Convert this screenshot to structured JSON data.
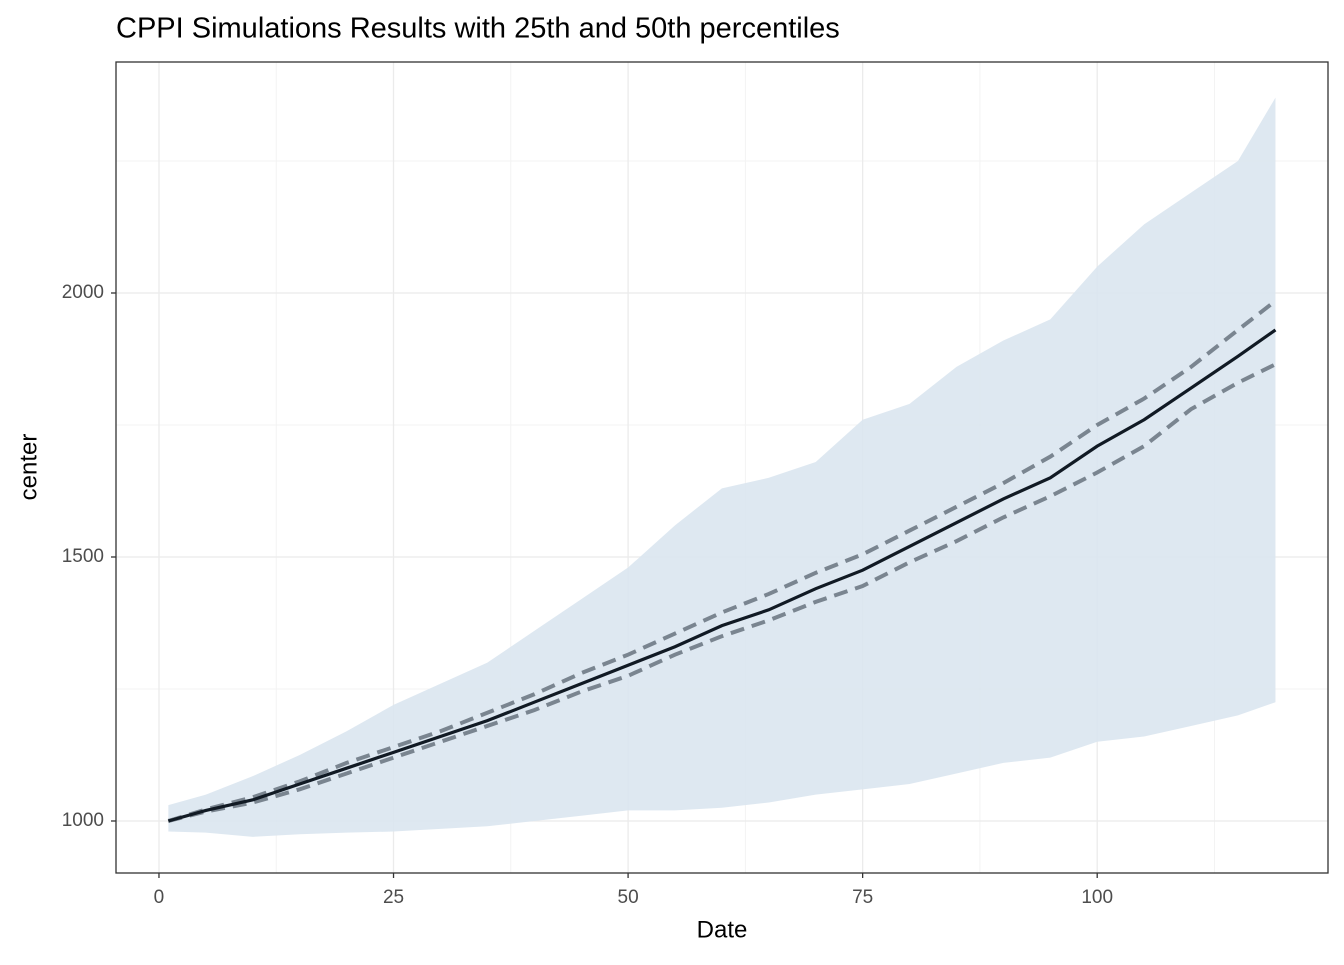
{
  "chart_data": {
    "type": "line",
    "title": "CPPI Simulations Results with 25th and 50th percentiles",
    "x_label": "Date",
    "y_label": "center",
    "x": [
      1,
      5,
      10,
      15,
      20,
      25,
      30,
      35,
      40,
      45,
      50,
      55,
      60,
      65,
      70,
      75,
      80,
      85,
      90,
      95,
      100,
      105,
      110,
      115,
      119
    ],
    "ribbon": {
      "color": "#dae6f0",
      "upper": [
        1030,
        1050,
        1085,
        1125,
        1170,
        1220,
        1260,
        1300,
        1360,
        1420,
        1480,
        1560,
        1630,
        1650,
        1680,
        1760,
        1790,
        1860,
        1910,
        1950,
        2050,
        2130,
        2190,
        2250,
        2370
      ],
      "lower": [
        980,
        978,
        970,
        975,
        978,
        980,
        985,
        990,
        1000,
        1010,
        1020,
        1020,
        1025,
        1035,
        1050,
        1060,
        1070,
        1090,
        1110,
        1120,
        1150,
        1160,
        1180,
        1200,
        1225
      ]
    },
    "series": [
      {
        "color": "#7a8590",
        "dashed": true,
        "values": [
          1000,
          1022,
          1045,
          1075,
          1110,
          1140,
          1170,
          1205,
          1240,
          1280,
          1315,
          1355,
          1395,
          1430,
          1470,
          1505,
          1550,
          1595,
          1640,
          1690,
          1750,
          1800,
          1860,
          1930,
          1985
        ]
      },
      {
        "color": "#7a8590",
        "dashed": true,
        "values": [
          1000,
          1018,
          1035,
          1060,
          1090,
          1120,
          1150,
          1180,
          1210,
          1245,
          1275,
          1315,
          1350,
          1380,
          1415,
          1445,
          1490,
          1530,
          1575,
          1615,
          1660,
          1710,
          1780,
          1830,
          1865
        ]
      },
      {
        "color": "#111a24",
        "dashed": false,
        "values": [
          1000,
          1020,
          1040,
          1070,
          1100,
          1130,
          1160,
          1190,
          1225,
          1260,
          1295,
          1330,
          1370,
          1400,
          1440,
          1475,
          1520,
          1565,
          1610,
          1650,
          1710,
          1760,
          1820,
          1880,
          1930
        ]
      }
    ],
    "xlim": [
      -4.58,
      124.6
    ],
    "ylim": [
      901.5,
      2437.5
    ],
    "xticks": [
      0,
      25,
      50,
      75,
      100
    ],
    "yticks": [
      1000,
      1500,
      2000
    ],
    "x_minor_ticks": [
      12.5,
      37.5,
      62.5,
      87.5,
      112.5
    ],
    "y_minor_ticks": [
      1250,
      1750,
      2250
    ],
    "grid": true
  }
}
